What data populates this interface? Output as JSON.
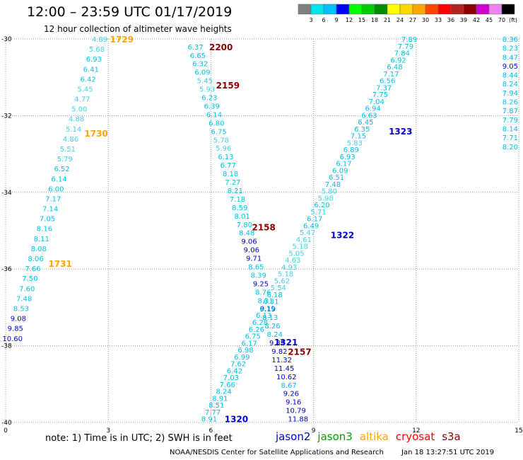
{
  "header": {
    "title": "12:00 – 23:59 UTC 01/17/2019",
    "subtitle": "12 hour collection of altimeter wave heights"
  },
  "legend": {
    "unit": "(ft)",
    "bins": [
      {
        "label": "3",
        "color": "#808080"
      },
      {
        "label": "6",
        "color": "#00e5ee"
      },
      {
        "label": "9",
        "color": "#00bfff"
      },
      {
        "label": "12",
        "color": "#0000ff"
      },
      {
        "label": "15",
        "color": "#00ff00"
      },
      {
        "label": "18",
        "color": "#00cd00"
      },
      {
        "label": "21",
        "color": "#008b00"
      },
      {
        "label": "24",
        "color": "#ffff00"
      },
      {
        "label": "27",
        "color": "#ffd700"
      },
      {
        "label": "30",
        "color": "#ffa500"
      },
      {
        "label": "33",
        "color": "#ff4500"
      },
      {
        "label": "36",
        "color": "#ff0000"
      },
      {
        "label": "39",
        "color": "#b22222"
      },
      {
        "label": "42",
        "color": "#8b0000"
      },
      {
        "label": "45",
        "color": "#cd00cd"
      },
      {
        "label": "70",
        "color": "#ee82ee"
      },
      {
        "label": "",
        "color": "#000000"
      }
    ]
  },
  "note": "note:  1) Time is in UTC;  2) SWH is in feet",
  "satellites": [
    {
      "name": "jason2",
      "color": "#0000cd"
    },
    {
      "name": "jason3",
      "color": "#00a000"
    },
    {
      "name": "altika",
      "color": "#ffa500"
    },
    {
      "name": "cryosat",
      "color": "#ff0000"
    },
    {
      "name": "s3a",
      "color": "#8b0000"
    }
  ],
  "footer": {
    "credit": "NOAA/NESDIS Center for Satellite Applications and Research",
    "timestamp": "Jan 18 13:27:51 UTC 2019"
  },
  "chart_data": {
    "type": "scatter",
    "xlabel": "",
    "ylabel": "",
    "xlim": [
      0,
      15
    ],
    "ylim": [
      -40,
      -30
    ],
    "xticks": [
      0,
      3,
      6,
      9,
      12,
      15
    ],
    "yticks": [
      -30,
      -32,
      -34,
      -36,
      -38,
      -40
    ],
    "ytick_labels": [
      "-30",
      "-32",
      "-34",
      "-36",
      "-38",
      "-40"
    ],
    "grid": "dotted",
    "colors": {
      "light": "#40d0e8",
      "cyan": "#00c0e8",
      "blue": "#0000cd"
    },
    "tracks": [
      {
        "name": "track-1729-1731",
        "x0": 2.75,
        "y0": -30,
        "x1": 0.2,
        "y1": -37.8,
        "values": [
          "4.89",
          "5.68",
          "6.93",
          "6.41",
          "6.42",
          "5.45",
          "4.77",
          "5.00",
          "4.88",
          "5.14",
          "4.86",
          "5.51",
          "5.79",
          "6.52",
          "6.14",
          "6.00",
          "7.17",
          "7.14",
          "7.05",
          "8.16",
          "8.11",
          "8.08",
          "8.06",
          "7.66",
          "7.50",
          "7.60",
          "7.48",
          "8.53",
          "9.08",
          "9.85",
          "10.60"
        ]
      },
      {
        "name": "track-2200-2157",
        "x0": 5.55,
        "y0": -30.2,
        "x1": 8.55,
        "y1": -39.9,
        "values": [
          "6.37",
          "6.65",
          "6.32",
          "6.09",
          "5.45",
          "5.93",
          "6.23",
          "6.39",
          "6.14",
          "6.80",
          "6.75",
          "5.78",
          "5.96",
          "6.13",
          "6.77",
          "8.18",
          "7.27",
          "8.21",
          "7.18",
          "8.59",
          "8.01",
          "7.80",
          "8.48",
          "9.06",
          "9.06",
          "9.71",
          "8.65",
          "8.39",
          "9.25",
          "8.76",
          "8.31",
          "9.19",
          "8.13",
          "8.26",
          "8.24",
          "9.89",
          "9.82",
          "11.32",
          "11.45",
          "10.62",
          "8.67",
          "9.26",
          "9.16",
          "10.79",
          "11.88"
        ]
      },
      {
        "name": "track-1320-1323",
        "x0": 5.95,
        "y0": -39.9,
        "x1": 11.8,
        "y1": -30,
        "values": [
          "8.91",
          "7.77",
          "8.51",
          "8.91",
          "8.24",
          "7.66",
          "7.03",
          "6.42",
          "7.62",
          "6.99",
          "6.98",
          "6.17",
          "6.75",
          "6.26",
          "6.28",
          "6.13",
          "6.19",
          "6.31",
          "6.18",
          "5.54",
          "5.62",
          "5.18",
          "4.93",
          "4.63",
          "5.05",
          "5.18",
          "4.61",
          "5.47",
          "6.49",
          "6.17",
          "5.71",
          "6.20",
          "5.98",
          "5.80",
          "7.48",
          "6.51",
          "6.09",
          "6.17",
          "6.93",
          "6.89",
          "5.83",
          "7.15",
          "6.35",
          "6.45",
          "6.63",
          "6.94",
          "7.04",
          "7.75",
          "7.37",
          "6.56",
          "7.17",
          "6.48",
          "6.92",
          "7.84",
          "7.79",
          "7.89"
        ]
      },
      {
        "name": "track-right-edge",
        "x0": 14.75,
        "y0": -30,
        "x1": 14.75,
        "y1": -32.8,
        "values": [
          "8.36",
          "8.23",
          "8.47",
          "9.05",
          "8.44",
          "8.24",
          "7.94",
          "8.26",
          "7.87",
          "7.79",
          "8.14",
          "7.71",
          "8.20"
        ]
      }
    ],
    "pass_labels": [
      {
        "text": "1729",
        "x": 3.05,
        "y": -30.0,
        "color": "#ffa500"
      },
      {
        "text": "1730",
        "x": 2.3,
        "y": -32.45,
        "color": "#ffa500"
      },
      {
        "text": "1731",
        "x": 1.25,
        "y": -35.85,
        "color": "#ffa500"
      },
      {
        "text": "2200",
        "x": 5.95,
        "y": -30.2,
        "color": "#8b0000"
      },
      {
        "text": "2159",
        "x": 6.15,
        "y": -31.2,
        "color": "#8b0000"
      },
      {
        "text": "2158",
        "x": 7.2,
        "y": -34.9,
        "color": "#8b0000"
      },
      {
        "text": "2157",
        "x": 8.25,
        "y": -38.15,
        "color": "#8b0000"
      },
      {
        "text": "1323",
        "x": 11.2,
        "y": -32.4,
        "color": "#0000cd"
      },
      {
        "text": "1322",
        "x": 9.5,
        "y": -35.1,
        "color": "#0000cd"
      },
      {
        "text": "1321",
        "x": 7.85,
        "y": -37.9,
        "color": "#0000cd"
      },
      {
        "text": "1320",
        "x": 6.4,
        "y": -39.9,
        "color": "#0000cd"
      }
    ]
  }
}
